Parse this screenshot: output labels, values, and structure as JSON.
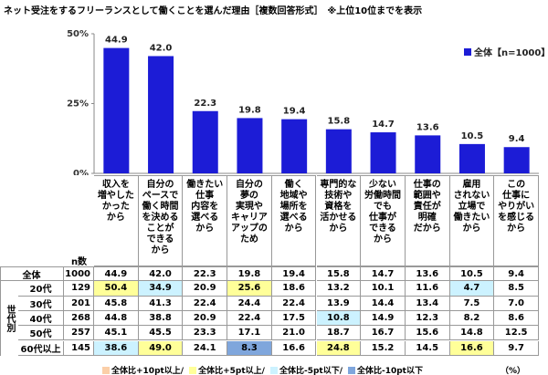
{
  "chart_data": {
    "type": "bar",
    "title": "ネット受注をするフリーランスとして働くことを選んだ理由［複数回答形式］　※上位10位までを表示",
    "categories": [
      "収入を\n増やした\nかった\nから",
      "自分の\nペースで\n働く時間\nを決める\nことが\nできる\nから",
      "働きたい\n仕事\n内容を\n選べる\nから",
      "自分の\n夢の\n実現や\nキャリア\nアップの\nため",
      "働く\n地域や\n場所を\n選べる\nから",
      "専門的な\n技術や\n資格を\n活かせる\nから",
      "少ない\n労働時間\nでも\n仕事が\nできる\nから",
      "仕事の\n範囲や\n責任が\n明確\nだから",
      "雇用\nされない\n立場で\n働きたい\nから",
      "この\n仕事に\nやりがい\nを感じる\nから"
    ],
    "series": [
      {
        "name": "全体【n=1000】",
        "color": "#1c1cd6",
        "values": [
          44.9,
          42.0,
          22.3,
          19.8,
          19.4,
          15.8,
          14.7,
          13.6,
          10.5,
          9.4
        ],
        "value_labels": [
          "44.9",
          "42.0",
          "22.3",
          "19.8",
          "19.4",
          "15.8",
          "14.7",
          "13.6",
          "10.5",
          "9.4"
        ]
      }
    ],
    "ylim": [
      0,
      50
    ],
    "yticks": [
      {
        "value": 0,
        "label": "0%"
      },
      {
        "value": 25,
        "label": "25%"
      },
      {
        "value": 50,
        "label": "50%"
      }
    ],
    "legend_position": "top-right"
  },
  "table": {
    "n_header": "n数",
    "group_label": "世代別",
    "rows": [
      [
        "全体",
        "1000",
        "44.9",
        "42.0",
        "22.3",
        "19.8",
        "19.4",
        "15.8",
        "14.7",
        "13.6",
        "10.5",
        "9.4"
      ],
      [
        "20代",
        "129",
        "50.4",
        "34.9",
        "20.9",
        "25.6",
        "18.6",
        "13.2",
        "10.1",
        "11.6",
        "4.7",
        "8.5"
      ],
      [
        "30代",
        "201",
        "45.8",
        "41.3",
        "22.4",
        "24.4",
        "22.4",
        "13.9",
        "14.4",
        "13.4",
        "7.5",
        "7.0"
      ],
      [
        "40代",
        "268",
        "44.8",
        "38.8",
        "20.9",
        "22.4",
        "17.5",
        "10.8",
        "14.9",
        "12.3",
        "8.2",
        "8.6"
      ],
      [
        "50代",
        "257",
        "45.1",
        "45.5",
        "23.3",
        "17.1",
        "21.0",
        "18.7",
        "16.7",
        "15.6",
        "14.8",
        "12.5"
      ],
      [
        "60代以上",
        "145",
        "38.6",
        "49.0",
        "24.1",
        "8.3",
        "16.6",
        "24.8",
        "15.2",
        "14.5",
        "16.6",
        "9.7"
      ]
    ],
    "cell_colors": [
      [
        null,
        null,
        null,
        null,
        null,
        null,
        null,
        null,
        null,
        null
      ],
      [
        "#ffff99",
        "#ccf2ff",
        null,
        "#ffff99",
        null,
        null,
        null,
        null,
        "#ccf2ff",
        null
      ],
      [
        null,
        null,
        null,
        null,
        null,
        null,
        null,
        null,
        null,
        null
      ],
      [
        null,
        null,
        null,
        null,
        null,
        "#ccf2ff",
        null,
        null,
        null,
        null
      ],
      [
        null,
        null,
        null,
        null,
        null,
        null,
        null,
        null,
        null,
        null
      ],
      [
        "#ccf2ff",
        "#ffff99",
        null,
        "#7fa6dc",
        null,
        "#ffff99",
        null,
        null,
        "#ffff99",
        null
      ]
    ],
    "legend": [
      {
        "label": "全体比+10pt以上/",
        "color": "#fbcfa8"
      },
      {
        "label": "全体比+5pt以上/",
        "color": "#ffff99"
      },
      {
        "label": "全体比-5pt以下/",
        "color": "#ccf2ff"
      },
      {
        "label": "全体比-10pt以下",
        "color": "#7fa6dc"
      }
    ],
    "unit": "（%）"
  }
}
